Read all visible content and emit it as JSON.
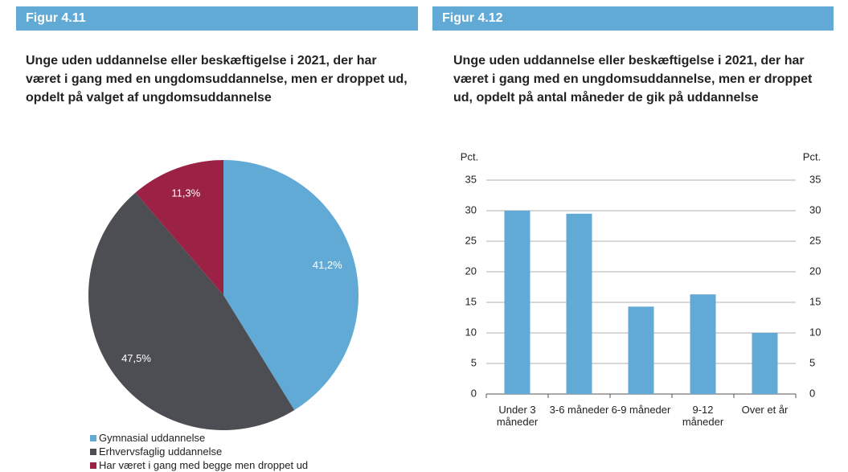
{
  "chart_data": [
    {
      "type": "pie",
      "figure": "Figur 4.11",
      "title": "Unge uden uddannelse eller beskæftigelse i 2021, der har været i gang med en ungdomsuddannelse, men er droppet ud, opdelt på valget af ungdoms­uddannelse",
      "categories": [
        "Gymnasial uddannelse",
        "Erhvervsfaglig uddannelse",
        "Har været i gang med begge men droppet ud"
      ],
      "values": [
        41.2,
        47.5,
        11.3
      ],
      "value_labels": [
        "41,2%",
        "47,5%",
        "11,3%"
      ],
      "colors": [
        "#62aad6",
        "#4d4e53",
        "#9b2245"
      ]
    },
    {
      "type": "bar",
      "figure": "Figur 4.12",
      "title": "Unge uden uddannelse eller beskæftigelse i 2021, der har været i gang med en ungdomsuddannelse, men er droppet ud, opdelt på antal måneder de gik på uddannelse",
      "ylabel": "Pct.",
      "y2label": "Pct.",
      "categories": [
        "Under 3 måneder",
        "3-6 måneder",
        "6-9 måneder",
        "9-12 måneder",
        "Over et år"
      ],
      "values": [
        30,
        29.5,
        14.3,
        16.3,
        10
      ],
      "color": "#62aad6",
      "ylim": [
        0,
        35
      ],
      "yticks": [
        0,
        5,
        10,
        15,
        20,
        25,
        30,
        35
      ],
      "y2lim": [
        0,
        35
      ],
      "y2ticks": [
        0,
        5,
        10,
        15,
        20,
        25,
        30,
        35
      ],
      "grid": true
    }
  ]
}
